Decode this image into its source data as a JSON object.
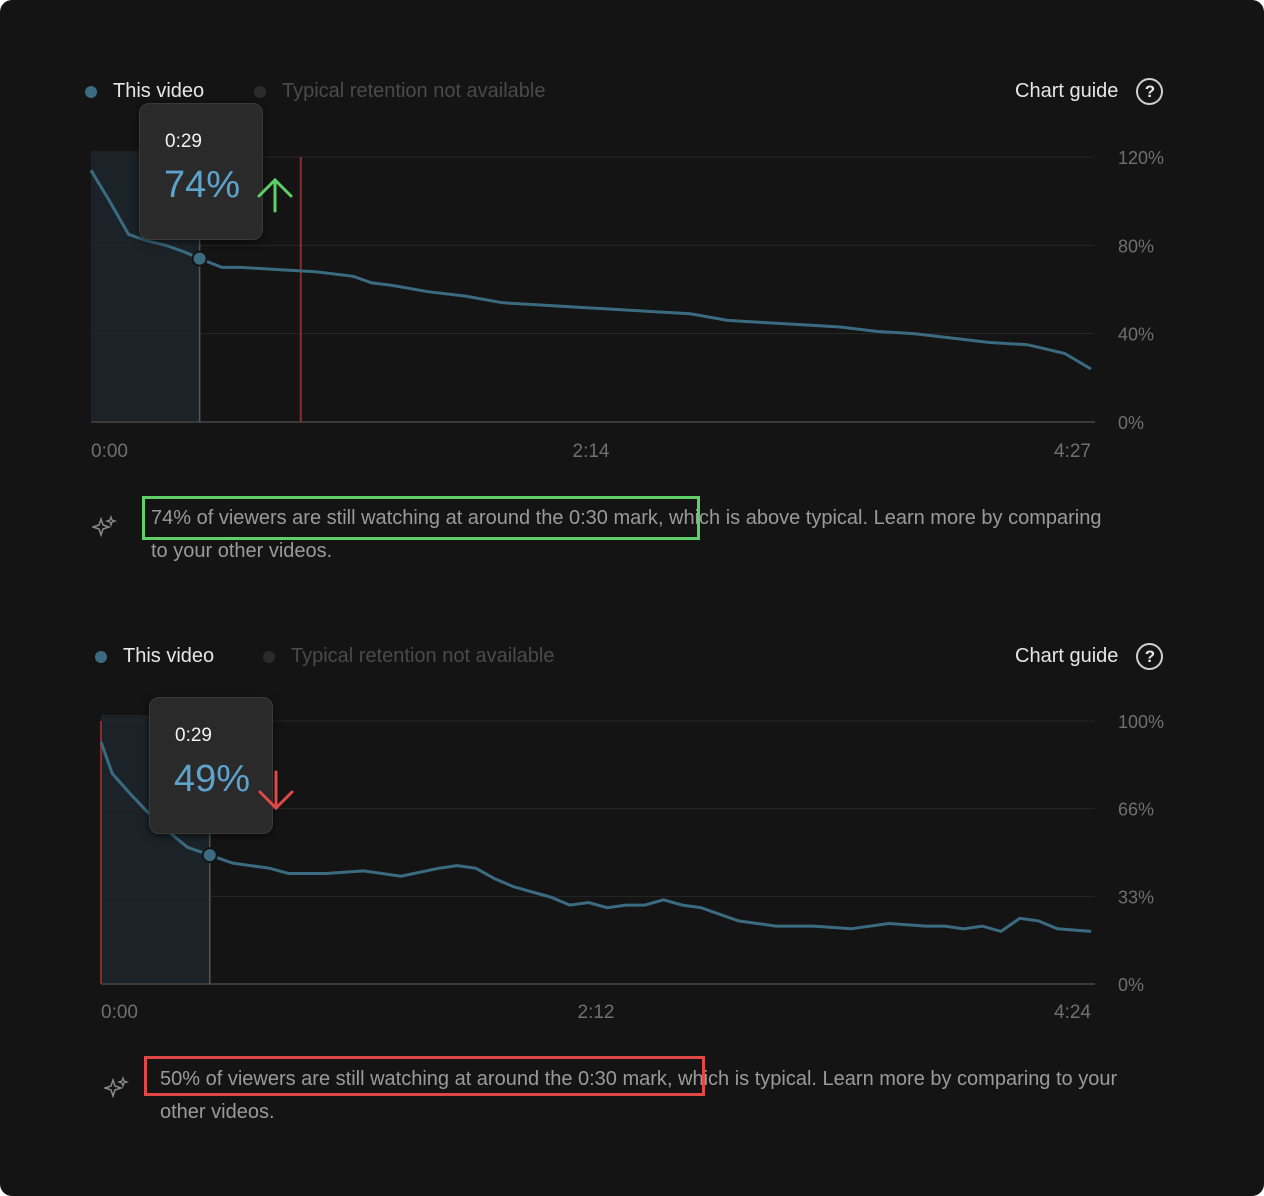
{
  "colors": {
    "background": "#141414",
    "line": "#3b6b80",
    "dot": "#3b6b80",
    "selection_fill": "#1b2329",
    "tooltip_value": "#5ea3cc",
    "up_arrow": "#5fd068",
    "down_arrow": "#e04848",
    "highlight_green": "#5fd068",
    "highlight_red": "#e04848",
    "marker_red": "#8a2c2c"
  },
  "charts": [
    {
      "legend": {
        "this_video": "This video",
        "typical": "Typical retention not available"
      },
      "chart_guide_label": "Chart guide",
      "chart_guide_icon": "help-circle-icon",
      "y_ticks": [
        "120%",
        "80%",
        "40%",
        "0%"
      ],
      "x_ticks": [
        "0:00",
        "2:14",
        "4:27"
      ],
      "tooltip": {
        "time": "0:29",
        "value": "74%",
        "trend": "up-arrow-icon"
      },
      "insight": {
        "highlighted": "74% of viewers are still watching at around the 0:30 mark",
        "rest": ", which is above typical. Learn more by comparing to your other videos."
      }
    },
    {
      "legend": {
        "this_video": "This video",
        "typical": "Typical retention not available"
      },
      "chart_guide_label": "Chart guide",
      "chart_guide_icon": "help-circle-icon",
      "y_ticks": [
        "100%",
        "66%",
        "33%",
        "0%"
      ],
      "x_ticks": [
        "0:00",
        "2:12",
        "4:24"
      ],
      "tooltip": {
        "time": "0:29",
        "value": "49%",
        "trend": "down-arrow-icon"
      },
      "insight": {
        "highlighted": "50% of viewers are still watching at around the 0:30 mark",
        "rest": ", which is typical. Learn more by comparing to your other videos."
      }
    }
  ],
  "chart_data": [
    {
      "type": "line",
      "series": [
        {
          "name": "This video",
          "x": [
            0,
            5,
            10,
            15,
            20,
            25,
            29,
            35,
            40,
            50,
            60,
            70,
            75,
            80,
            90,
            100,
            110,
            120,
            130,
            140,
            150,
            160,
            170,
            180,
            190,
            200,
            210,
            220,
            230,
            240,
            250,
            255,
            260,
            267
          ],
          "values": [
            114,
            100,
            85,
            82,
            80,
            77,
            74,
            70,
            70,
            69,
            68,
            66,
            63,
            62,
            59,
            57,
            54,
            53,
            52,
            51,
            50,
            49,
            46,
            45,
            44,
            43,
            41,
            40,
            38,
            36,
            35,
            33,
            31,
            24
          ]
        }
      ],
      "xlim": [
        0,
        267
      ],
      "ylim": [
        0,
        120
      ],
      "highlight_x": 29,
      "marker_x": 56
    },
    {
      "type": "line",
      "series": [
        {
          "name": "This video",
          "x": [
            0,
            3,
            8,
            12,
            18,
            23,
            29,
            35,
            45,
            50,
            55,
            60,
            70,
            80,
            90,
            95,
            100,
            105,
            110,
            115,
            120,
            125,
            130,
            135,
            140,
            145,
            150,
            155,
            160,
            170,
            175,
            180,
            190,
            200,
            210,
            220,
            225,
            230,
            235,
            240,
            245,
            250,
            255,
            264
          ],
          "values": [
            92,
            80,
            72,
            66,
            58,
            52,
            49,
            46,
            44,
            42,
            42,
            42,
            43,
            41,
            44,
            45,
            44,
            40,
            37,
            35,
            33,
            30,
            31,
            29,
            30,
            30,
            32,
            30,
            29,
            24,
            23,
            22,
            22,
            21,
            23,
            22,
            22,
            21,
            22,
            20,
            25,
            24,
            21,
            20
          ]
        }
      ],
      "xlim": [
        0,
        264
      ],
      "ylim": [
        0,
        100
      ],
      "highlight_x": 29,
      "marker_x": 0
    }
  ]
}
